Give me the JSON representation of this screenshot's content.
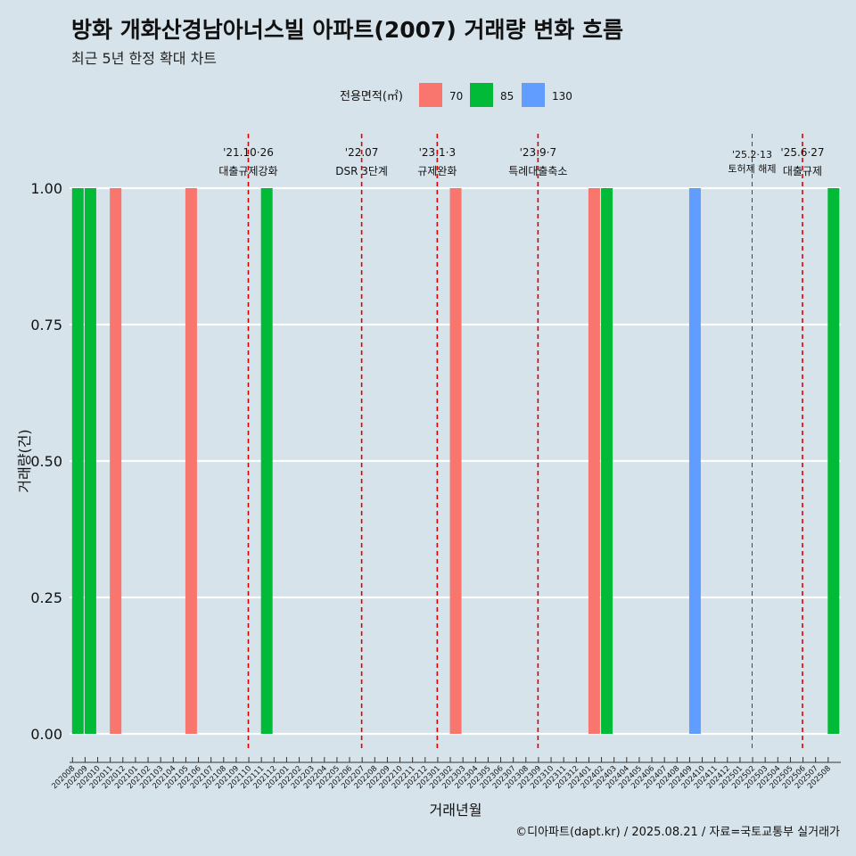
{
  "title": "방화 개화산경남아너스빌 아파트(2007) 거래량 변화 흐름",
  "subtitle": "최근 5년 한정 확대 차트",
  "caption": "©디아파트(dapt.kr) / 2025.08.21 / 자료=국토교통부 실거래가",
  "colors": {
    "background": "#d6e3ea",
    "grid": "#ffffff",
    "event_line": "#e00000",
    "series": {
      "70": "#f8766d",
      "85": "#00ba38",
      "130": "#619cff"
    }
  },
  "chart_data": {
    "type": "bar",
    "title": "방화 개화산경남아너스빌 아파트(2007) 거래량 변화 흐름",
    "xlabel": "거래년월",
    "ylabel": "거래량(건)",
    "ylim": [
      0,
      1
    ],
    "yticks": [
      "0.00",
      "0.25",
      "0.50",
      "0.75",
      "1.00"
    ],
    "grid": true,
    "legend": {
      "title": "전용면적(㎡)",
      "position": "top",
      "entries": [
        "70",
        "85",
        "130"
      ]
    },
    "categories": [
      "202008",
      "202009",
      "202010",
      "202011",
      "202012",
      "202101",
      "202102",
      "202103",
      "202104",
      "202105",
      "202106",
      "202107",
      "202108",
      "202109",
      "202110",
      "202111",
      "202112",
      "202201",
      "202202",
      "202203",
      "202204",
      "202205",
      "202206",
      "202207",
      "202208",
      "202209",
      "202210",
      "202211",
      "202212",
      "202301",
      "202302",
      "202303",
      "202304",
      "202305",
      "202306",
      "202307",
      "202308",
      "202309",
      "202310",
      "202311",
      "202312",
      "202401",
      "202402",
      "202403",
      "202404",
      "202405",
      "202406",
      "202407",
      "202408",
      "202409",
      "202410",
      "202411",
      "202412",
      "202501",
      "202502",
      "202503",
      "202504",
      "202505",
      "202506",
      "202507",
      "202508"
    ],
    "series": [
      {
        "name": "70",
        "points": [
          {
            "x": "202011",
            "y": 1
          },
          {
            "x": "202105",
            "y": 1
          },
          {
            "x": "202302",
            "y": 1
          },
          {
            "x": "202401",
            "y": 1
          }
        ]
      },
      {
        "name": "85",
        "points": [
          {
            "x": "202008",
            "y": 1
          },
          {
            "x": "202009",
            "y": 1
          },
          {
            "x": "202111",
            "y": 1
          },
          {
            "x": "202402",
            "y": 1
          },
          {
            "x": "202508",
            "y": 1
          }
        ]
      },
      {
        "name": "130",
        "points": [
          {
            "x": "202409",
            "y": 1
          }
        ]
      }
    ],
    "events": [
      {
        "date": "'21.10·26",
        "label": "대출규제강화",
        "x": "202110",
        "style": "normal"
      },
      {
        "date": "'22.07",
        "label": "DSR 3단계",
        "x": "202207",
        "style": "normal"
      },
      {
        "date": "'23.1·3",
        "label": "규제완화",
        "x": "202301",
        "style": "normal"
      },
      {
        "date": "'23.9·7",
        "label": "특례대출축소",
        "x": "202309",
        "style": "normal"
      },
      {
        "date": "'25.2·13",
        "label": "토허제 해제",
        "x": "202502",
        "style": "small"
      },
      {
        "date": "'25.6·27",
        "label": "대출규제",
        "x": "202506",
        "style": "normal"
      }
    ]
  }
}
